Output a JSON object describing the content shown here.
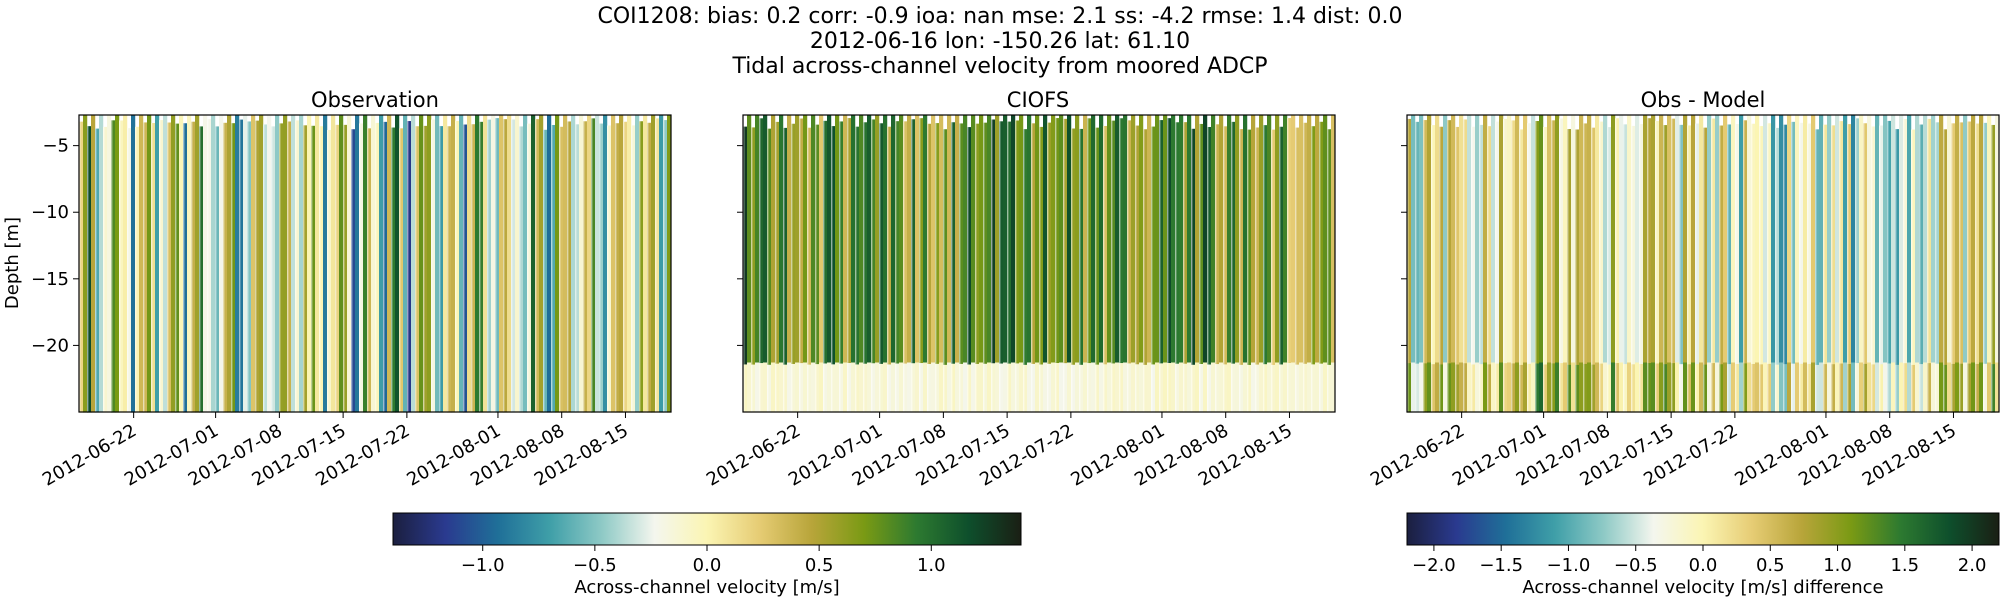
{
  "figure": {
    "title_line1": "COI1208: bias: 0.2  corr: -0.9  ioa: nan  mse: 2.1  ss: -4.2  rmse: 1.4  dist: 0.0",
    "title_line2": "2012-06-16 lon: -150.26 lat: 61.10",
    "title_line3": "Tidal across-channel velocity from moored ADCP"
  },
  "colors": {
    "cmap": [
      "#1b1f3f",
      "#2a3a8f",
      "#1f6f98",
      "#3f9fa8",
      "#8fcac6",
      "#f4f6ee",
      "#fbf5b3",
      "#e6cc74",
      "#b8a53a",
      "#7a9a14",
      "#2d7a30",
      "#0e4f2c",
      "#1a1f14"
    ]
  },
  "chart_data": [
    {
      "type": "heatmap",
      "title": "Observation",
      "ylabel": "Depth [m]",
      "y_ticks": [
        -5,
        -10,
        -15,
        -20
      ],
      "y_tick_labels": [
        "−5",
        "−10",
        "−15",
        "−20"
      ],
      "ylim": [
        -25,
        -2.7
      ],
      "x_range": [
        "2012-06-16",
        "2012-08-20"
      ],
      "x_ticks": [
        "2012-06-22",
        "2012-07-01",
        "2012-07-08",
        "2012-07-15",
        "2012-07-22",
        "2012-08-01",
        "2012-08-08",
        "2012-08-15"
      ],
      "value_range": [
        -1.4,
        1.4
      ],
      "units": "m/s"
    },
    {
      "type": "heatmap",
      "title": "CIOFS",
      "ylim": [
        -25,
        -2.7
      ],
      "x_range": [
        "2012-06-16",
        "2012-08-20"
      ],
      "x_ticks": [
        "2012-06-22",
        "2012-07-01",
        "2012-07-08",
        "2012-07-15",
        "2012-07-22",
        "2012-08-01",
        "2012-08-08",
        "2012-08-15"
      ],
      "value_range": [
        -1.4,
        1.4
      ],
      "units": "m/s"
    },
    {
      "type": "heatmap",
      "title": "Obs - Model",
      "ylim": [
        -25,
        -2.7
      ],
      "x_range": [
        "2012-06-16",
        "2012-08-20"
      ],
      "x_ticks": [
        "2012-06-22",
        "2012-07-01",
        "2012-07-08",
        "2012-07-15",
        "2012-07-22",
        "2012-08-01",
        "2012-08-08",
        "2012-08-15"
      ],
      "value_range": [
        -2.2,
        2.2
      ],
      "units": "m/s"
    }
  ],
  "colorbars": [
    {
      "label": "Across-channel velocity [m/s]",
      "range": [
        -1.4,
        1.4
      ],
      "ticks": [
        -1.0,
        -0.5,
        0.0,
        0.5,
        1.0
      ],
      "tick_labels": [
        "−1.0",
        "−0.5",
        "0.0",
        "0.5",
        "1.0"
      ]
    },
    {
      "label": "Across-channel velocity [m/s] difference",
      "range": [
        -2.2,
        2.2
      ],
      "ticks": [
        -2.0,
        -1.5,
        -1.0,
        -0.5,
        0.0,
        0.5,
        1.0,
        1.5,
        2.0
      ],
      "tick_labels": [
        "−2.0",
        "−1.5",
        "−1.0",
        "−0.5",
        "0.0",
        "0.5",
        "1.0",
        "1.5",
        "2.0"
      ]
    }
  ]
}
